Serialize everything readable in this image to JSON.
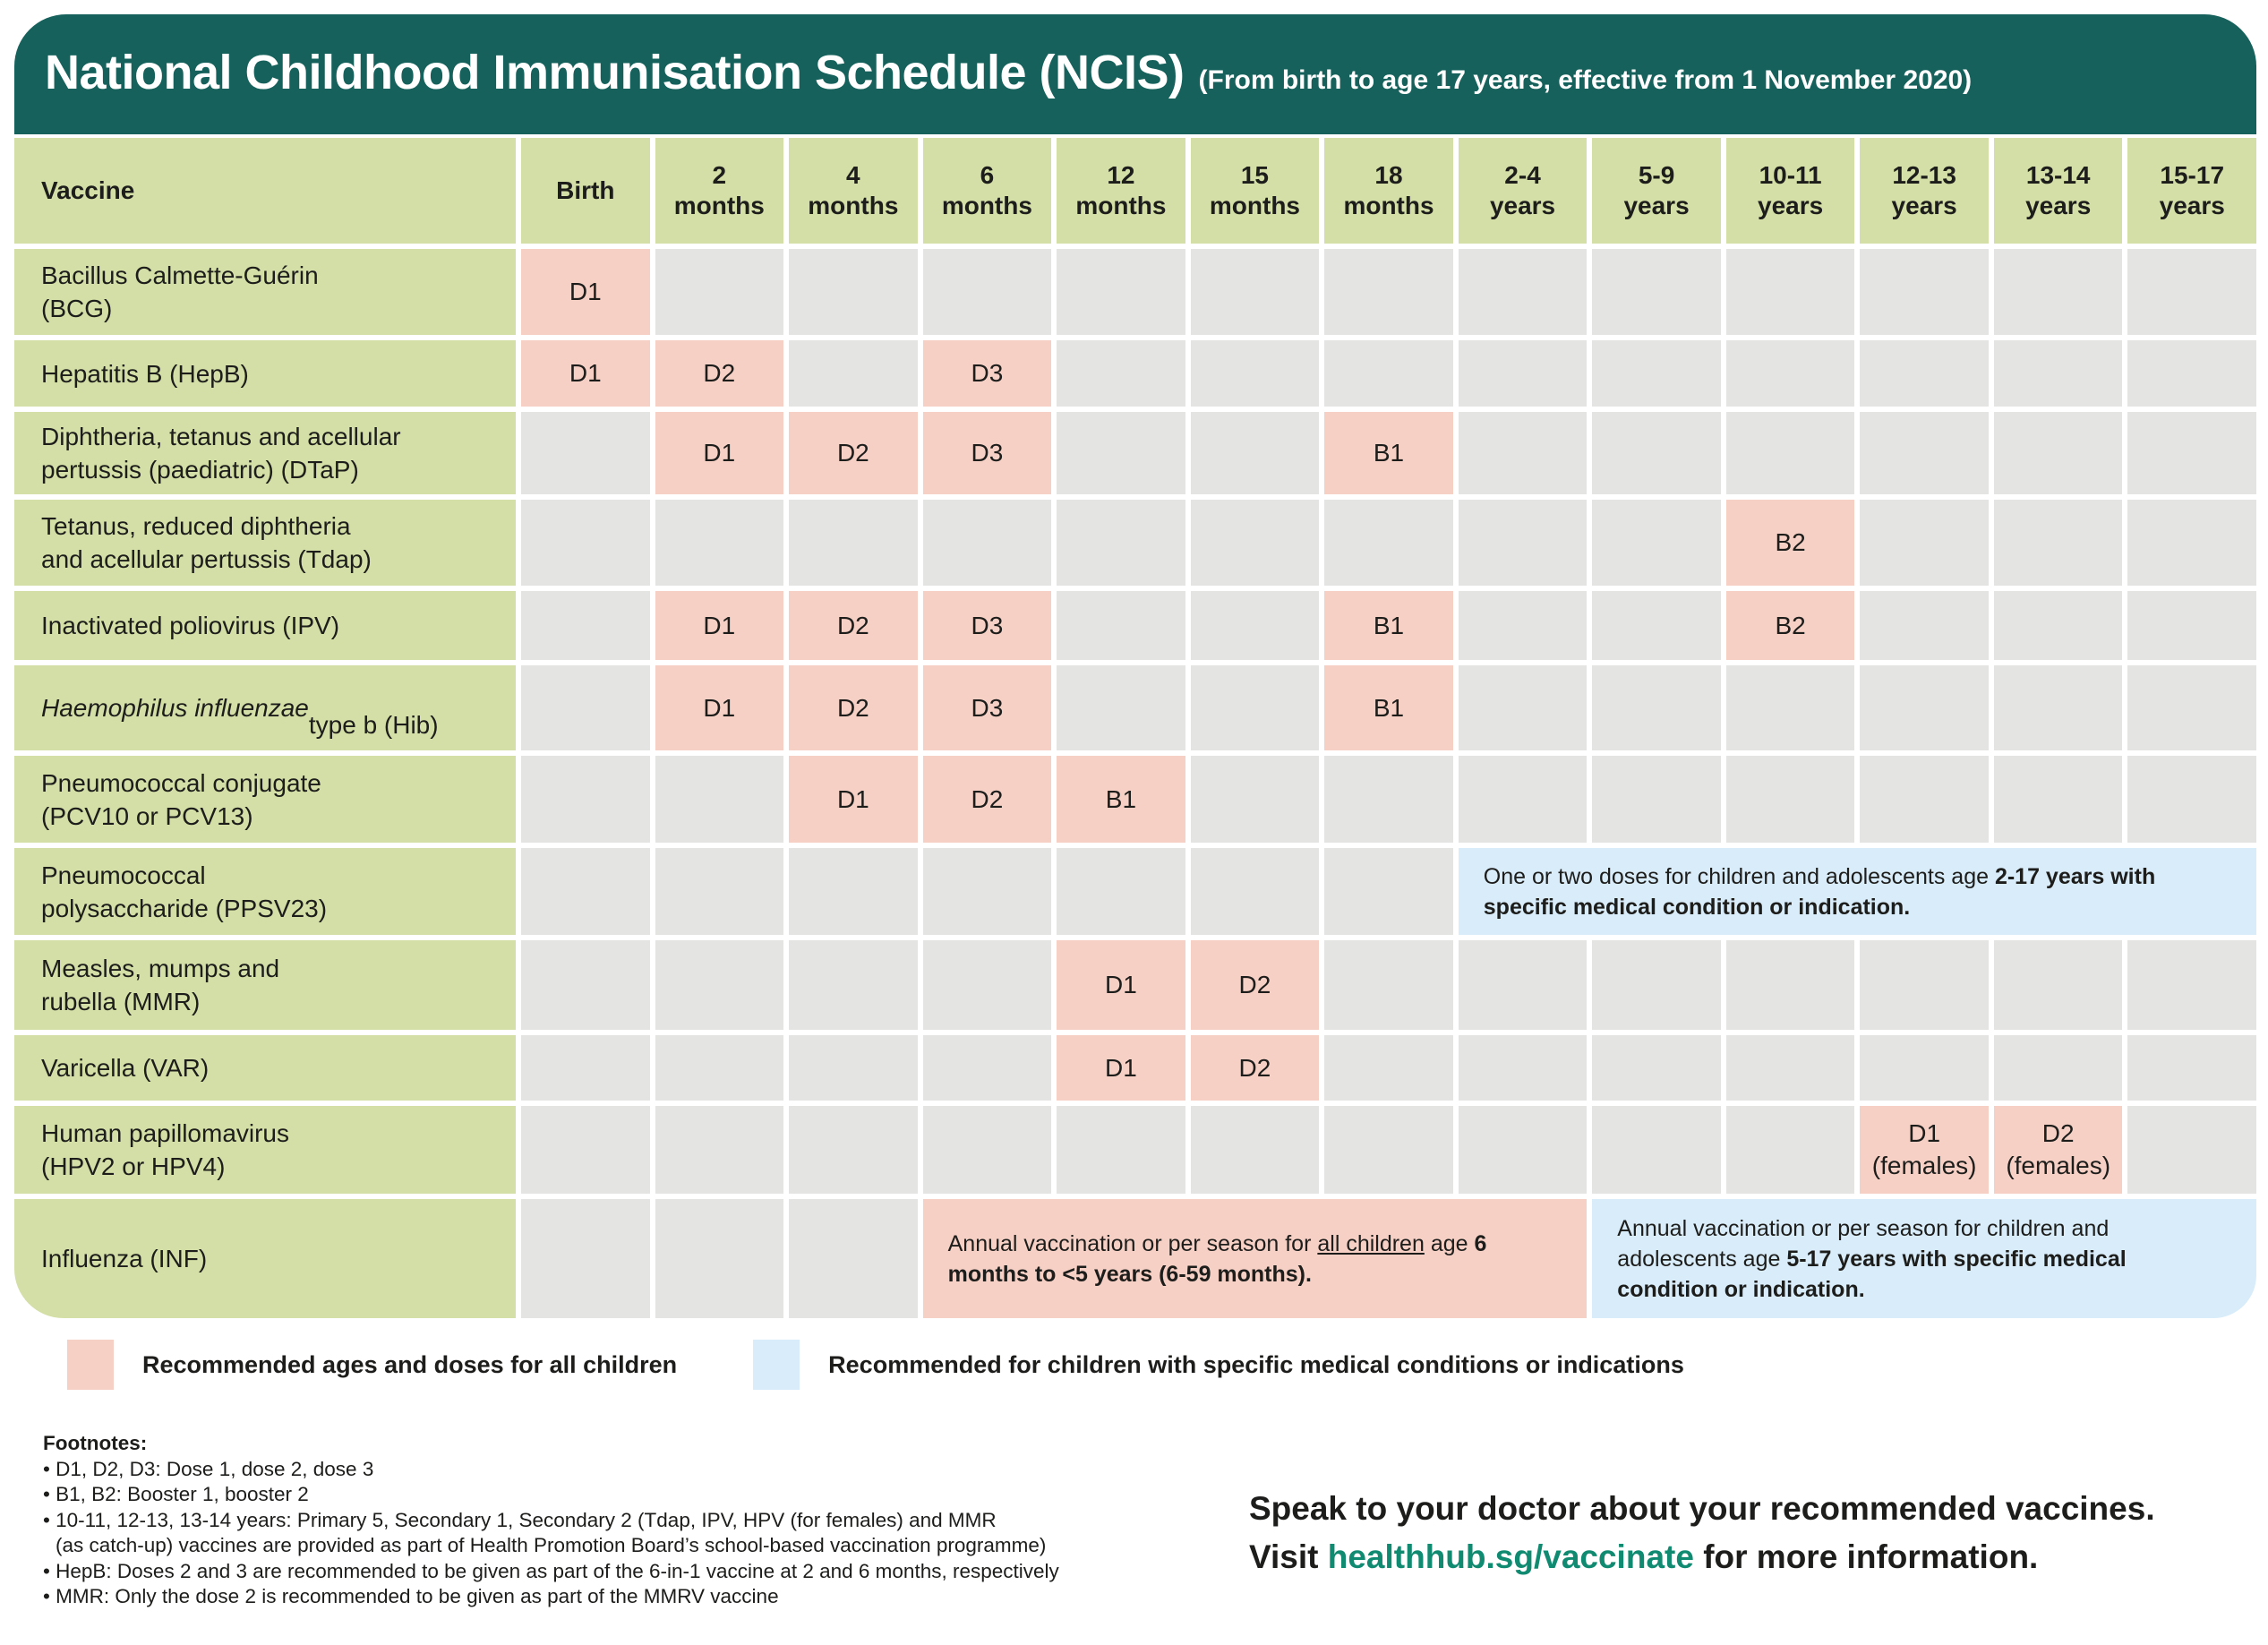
{
  "header": {
    "title": "National Childhood Immunisation Schedule (NCIS)",
    "subtitle": "(From birth to age 17 years, effective from 1 November 2020)"
  },
  "colors": {
    "banner_teal": "#16615b",
    "cell_green": "#d3dfa6",
    "cell_gray": "#e4e4e3",
    "dose_pink": "#f6d0c5",
    "note_blue": "#d9ecf9",
    "link_green": "#108a70",
    "text_black": "#1d1d1b"
  },
  "table": {
    "columns": [
      "Vaccine",
      "Birth",
      "2\nmonths",
      "4\nmonths",
      "6\nmonths",
      "12\nmonths",
      "15\nmonths",
      "18\nmonths",
      "2-4\nyears",
      "5-9\nyears",
      "10-11\nyears",
      "12-13\nyears",
      "13-14\nyears",
      "15-17\nyears"
    ],
    "rows": [
      {
        "vaccine": "Bacillus Calmette-Guérin\n(BCG)",
        "doses": [
          {
            "col": 1,
            "label": "D1"
          }
        ]
      },
      {
        "vaccine": "Hepatitis B (HepB)",
        "doses": [
          {
            "col": 1,
            "label": "D1"
          },
          {
            "col": 2,
            "label": "D2"
          },
          {
            "col": 4,
            "label": "D3"
          }
        ]
      },
      {
        "vaccine": "Diphtheria, tetanus and acellular\npertussis (paediatric) (DTaP)",
        "doses": [
          {
            "col": 2,
            "label": "D1"
          },
          {
            "col": 3,
            "label": "D2"
          },
          {
            "col": 4,
            "label": "D3"
          },
          {
            "col": 7,
            "label": "B1"
          }
        ]
      },
      {
        "vaccine": "Tetanus, reduced diphtheria\nand acellular pertussis (Tdap)",
        "doses": [
          {
            "col": 10,
            "label": "B2"
          }
        ]
      },
      {
        "vaccine": "Inactivated poliovirus (IPV)",
        "doses": [
          {
            "col": 2,
            "label": "D1"
          },
          {
            "col": 3,
            "label": "D2"
          },
          {
            "col": 4,
            "label": "D3"
          },
          {
            "col": 7,
            "label": "B1"
          },
          {
            "col": 10,
            "label": "B2"
          }
        ]
      },
      {
        "vaccine_parts": [
          {
            "text": "Haemophilus influenzae",
            "style": "italic"
          },
          {
            "text": "\ntype b (Hib)",
            "style": "normal"
          }
        ],
        "doses": [
          {
            "col": 2,
            "label": "D1"
          },
          {
            "col": 3,
            "label": "D2"
          },
          {
            "col": 4,
            "label": "D3"
          },
          {
            "col": 7,
            "label": "B1"
          }
        ]
      },
      {
        "vaccine": "Pneumococcal conjugate\n(PCV10 or PCV13)",
        "doses": [
          {
            "col": 3,
            "label": "D1"
          },
          {
            "col": 4,
            "label": "D2"
          },
          {
            "col": 5,
            "label": "B1"
          }
        ]
      },
      {
        "vaccine": "Pneumococcal\npolysaccharide (PPSV23)",
        "doses": [],
        "spans": [
          {
            "start": 8,
            "span": 6,
            "color": "blue",
            "parts": [
              {
                "text": "One or two doses for children and adolescents age ",
                "style": "normal"
              },
              {
                "text": "2-17 years with specific medical condition or indication.",
                "style": "bold"
              }
            ]
          }
        ]
      },
      {
        "vaccine": "Measles, mumps and\nrubella (MMR)",
        "doses": [
          {
            "col": 5,
            "label": "D1"
          },
          {
            "col": 6,
            "label": "D2"
          }
        ]
      },
      {
        "vaccine": "Varicella (VAR)",
        "doses": [
          {
            "col": 5,
            "label": "D1"
          },
          {
            "col": 6,
            "label": "D2"
          }
        ]
      },
      {
        "vaccine": "Human papillomavirus\n(HPV2 or HPV4)",
        "doses": [
          {
            "col": 11,
            "label": "D1\n(females)"
          },
          {
            "col": 12,
            "label": "D2\n(females)"
          }
        ]
      },
      {
        "vaccine": "Influenza (INF)",
        "doses": [],
        "spans": [
          {
            "start": 4,
            "span": 5,
            "color": "pink",
            "parts": [
              {
                "text": "Annual vaccination or per season for ",
                "style": "normal"
              },
              {
                "text": "all children",
                "style": "underline"
              },
              {
                "text": " age ",
                "style": "normal"
              },
              {
                "text": "6 months to <5 years (6-59 months).",
                "style": "bold"
              }
            ]
          },
          {
            "start": 9,
            "span": 5,
            "color": "blue",
            "parts": [
              {
                "text": "Annual vaccination or per season for children and adolescents age ",
                "style": "normal"
              },
              {
                "text": "5-17 years with specific medical condition or indication.",
                "style": "bold"
              }
            ]
          }
        ]
      }
    ]
  },
  "legend": [
    {
      "swatch": "pink",
      "label": "Recommended ages and doses for all children"
    },
    {
      "swatch": "blue",
      "label": "Recommended for children with specific medical conditions or indications"
    }
  ],
  "footnotes": {
    "title": "Footnotes:",
    "lines": [
      {
        "bullet": true,
        "text": "D1, D2, D3: Dose 1, dose 2, dose 3"
      },
      {
        "bullet": true,
        "text": "B1, B2: Booster 1, booster 2"
      },
      {
        "bullet": true,
        "text": "10-11, 12-13, 13-14 years: Primary 5, Secondary 1, Secondary 2 (Tdap, IPV, HPV (for females) and MMR"
      },
      {
        "bullet": false,
        "text": "(as catch-up) vaccines are provided as part of Health Promotion Board’s school-based vaccination programme)"
      },
      {
        "bullet": true,
        "text": "HepB: Doses 2 and 3 are recommended to be given as part of the 6-in-1 vaccine at 2 and 6 months, respectively"
      },
      {
        "bullet": true,
        "text": "MMR: Only the dose 2 is recommended to be given as part of the MMRV vaccine"
      }
    ]
  },
  "cta": {
    "line1": "Speak to your doctor about your recommended vaccines.",
    "line2_prefix": "Visit ",
    "link": "healthhub.sg/vaccinate",
    "line2_suffix": " for more information."
  }
}
